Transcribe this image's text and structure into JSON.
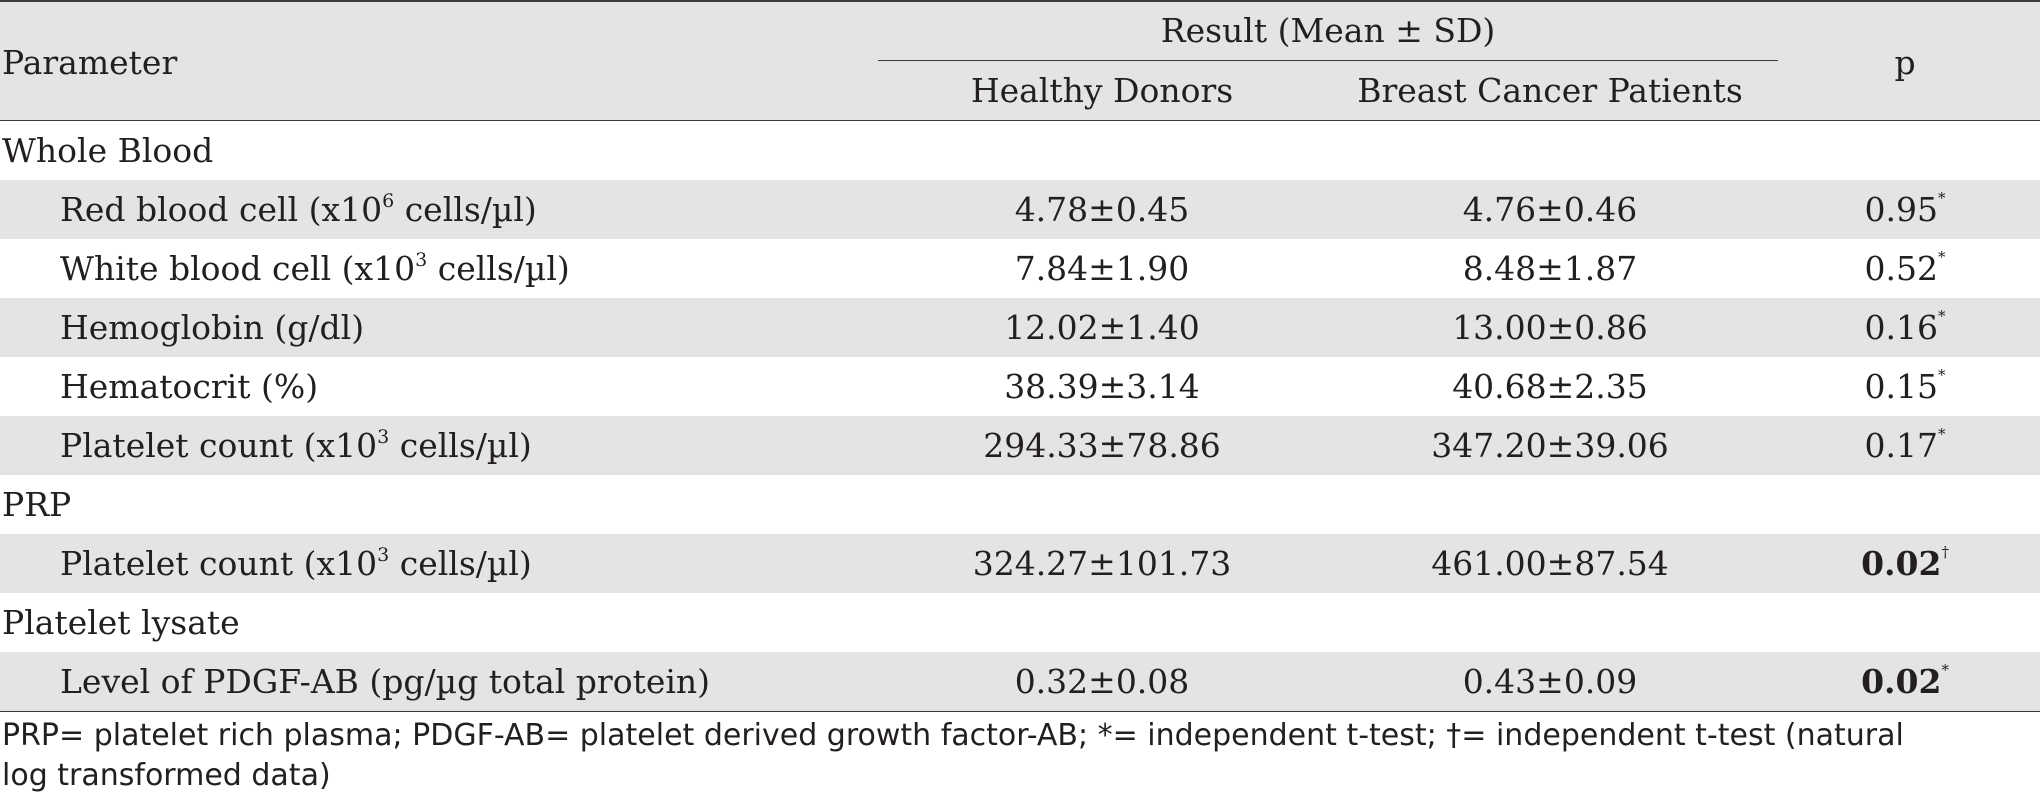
{
  "header": {
    "parameter": "Parameter",
    "result_group": "Result (Mean ± SD)",
    "healthy_donors": "Healthy Donors",
    "breast_cancer_patients": "Breast Cancer Patients",
    "p": "p"
  },
  "sections": {
    "whole_blood": {
      "label": "Whole Blood",
      "rows": [
        {
          "label_pre": "Red blood cell (x10",
          "label_sup": "6",
          "label_post": " cells/µl)",
          "healthy": "4.78±0.45",
          "cancer": "4.76±0.46",
          "p": "0.95",
          "p_mark": "*"
        },
        {
          "label_pre": "White blood cell (x10",
          "label_sup": "3",
          "label_post": " cells/µl)",
          "healthy": "7.84±1.90",
          "cancer": "8.48±1.87",
          "p": "0.52",
          "p_mark": "*"
        },
        {
          "label_pre": "Hemoglobin (g/dl)",
          "label_sup": "",
          "label_post": "",
          "healthy": "12.02±1.40",
          "cancer": "13.00±0.86",
          "p": "0.16",
          "p_mark": "*"
        },
        {
          "label_pre": "Hematocrit (%)",
          "label_sup": "",
          "label_post": "",
          "healthy": "38.39±3.14",
          "cancer": "40.68±2.35",
          "p": "0.15",
          "p_mark": "*"
        },
        {
          "label_pre": "Platelet count (x10",
          "label_sup": "3",
          "label_post": " cells/µl)",
          "healthy": "294.33±78.86",
          "cancer": "347.20±39.06",
          "p": "0.17",
          "p_mark": "*"
        }
      ]
    },
    "prp": {
      "label": "PRP",
      "rows": [
        {
          "label_pre": "Platelet count (x10",
          "label_sup": "3",
          "label_post": " cells/µl)",
          "healthy": "324.27±101.73",
          "cancer": "461.00±87.54",
          "p": "0.02",
          "p_mark": "†"
        }
      ]
    },
    "platelet_lysate": {
      "label": "Platelet lysate",
      "rows": [
        {
          "label_pre": "Level of PDGF-AB (pg/µg total protein)",
          "label_sup": "",
          "label_post": "",
          "healthy": "0.32±0.08",
          "cancer": "0.43±0.09",
          "p": "0.02",
          "p_mark": "*"
        }
      ]
    }
  },
  "footnote": {
    "line1": "PRP= platelet rich plasma; PDGF-AB= platelet derived growth factor-AB; *= independent t-test; †= independent t-test (natural",
    "line2": "log transformed data)"
  }
}
